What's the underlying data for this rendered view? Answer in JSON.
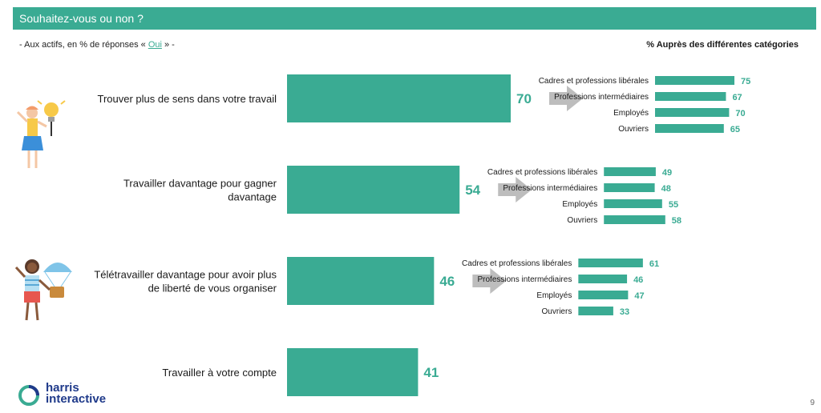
{
  "header": {
    "title": "Souhaitez-vous ou non ?"
  },
  "subtitle": {
    "prefix": "- Aux actifs, en % de réponses « ",
    "highlight": "Oui",
    "suffix": " » -"
  },
  "right_title": "% Auprès des différentes catégories",
  "colors": {
    "accent": "#3aab93",
    "arrow": "#bdbdbd"
  },
  "chart_data": {
    "type": "bar",
    "orientation": "horizontal",
    "xlim": [
      0,
      100
    ],
    "categories": [
      "Trouver plus de sens dans votre travail",
      "Travailler davantage pour gagner davantage",
      "Télétravailler davantage pour avoir plus de liberté de vous organiser",
      "Travailler à votre compte"
    ],
    "category_lines": [
      [
        "Trouver plus de sens dans votre travail"
      ],
      [
        "Travailler davantage pour gagner",
        "davantage"
      ],
      [
        "Télétravailler davantage pour avoir plus",
        "de liberté de vous organiser"
      ],
      [
        "Travailler à votre compte"
      ]
    ],
    "values": [
      70,
      54,
      46,
      41
    ],
    "breakdown_labels": [
      "Cadres et professions libérales",
      "Professions intermédiaires",
      "Employés",
      "Ouvriers"
    ],
    "breakdown": [
      [
        75,
        67,
        70,
        65
      ],
      [
        49,
        48,
        55,
        58
      ],
      [
        61,
        46,
        47,
        33
      ],
      null
    ]
  },
  "logo": {
    "line1": "harris",
    "line2": "interactive"
  },
  "page_number": "9"
}
